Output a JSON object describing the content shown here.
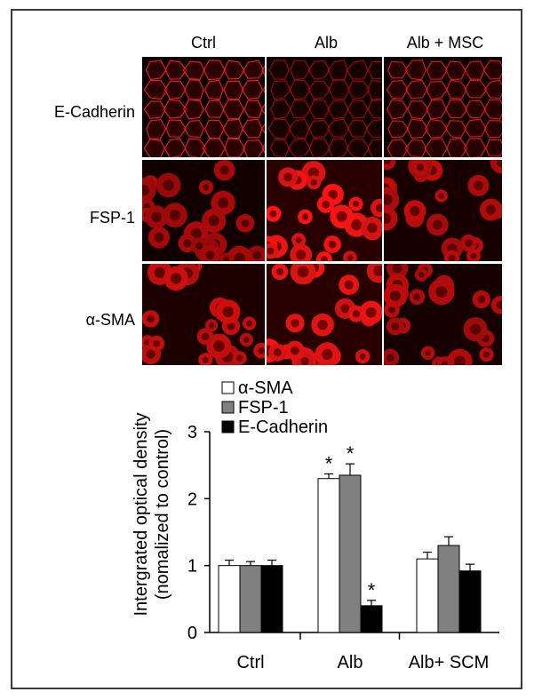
{
  "figure": {
    "columns": [
      "Ctrl",
      "Alb",
      "Alb + MSC"
    ],
    "rows": [
      "E-Cadherin",
      "FSP-1",
      "α-SMA"
    ]
  },
  "chart_data": {
    "type": "bar",
    "categories": [
      "Ctrl",
      "Alb",
      "Alb+ SCM"
    ],
    "series": [
      {
        "name": "α-SMA",
        "values": [
          1.0,
          2.3,
          1.1
        ],
        "errors": [
          0.08,
          0.07,
          0.1
        ],
        "color": "#ffffff"
      },
      {
        "name": "FSP-1",
        "values": [
          1.0,
          2.35,
          1.3
        ],
        "errors": [
          0.06,
          0.17,
          0.13
        ],
        "color": "#808080"
      },
      {
        "name": "E-Cadherin",
        "values": [
          1.0,
          0.4,
          0.92
        ],
        "errors": [
          0.08,
          0.08,
          0.1
        ],
        "color": "#000000"
      }
    ],
    "significance": [
      [
        "",
        "*",
        ""
      ],
      [
        "",
        "*",
        ""
      ],
      [
        "",
        "*",
        ""
      ]
    ],
    "ylabel": "Intergrated optical density",
    "ylabel2": "(nomalized to control)",
    "yticks": [
      0,
      1,
      2,
      3
    ],
    "ylim": [
      0,
      3
    ],
    "legend_position": "top-left",
    "grid": false
  }
}
